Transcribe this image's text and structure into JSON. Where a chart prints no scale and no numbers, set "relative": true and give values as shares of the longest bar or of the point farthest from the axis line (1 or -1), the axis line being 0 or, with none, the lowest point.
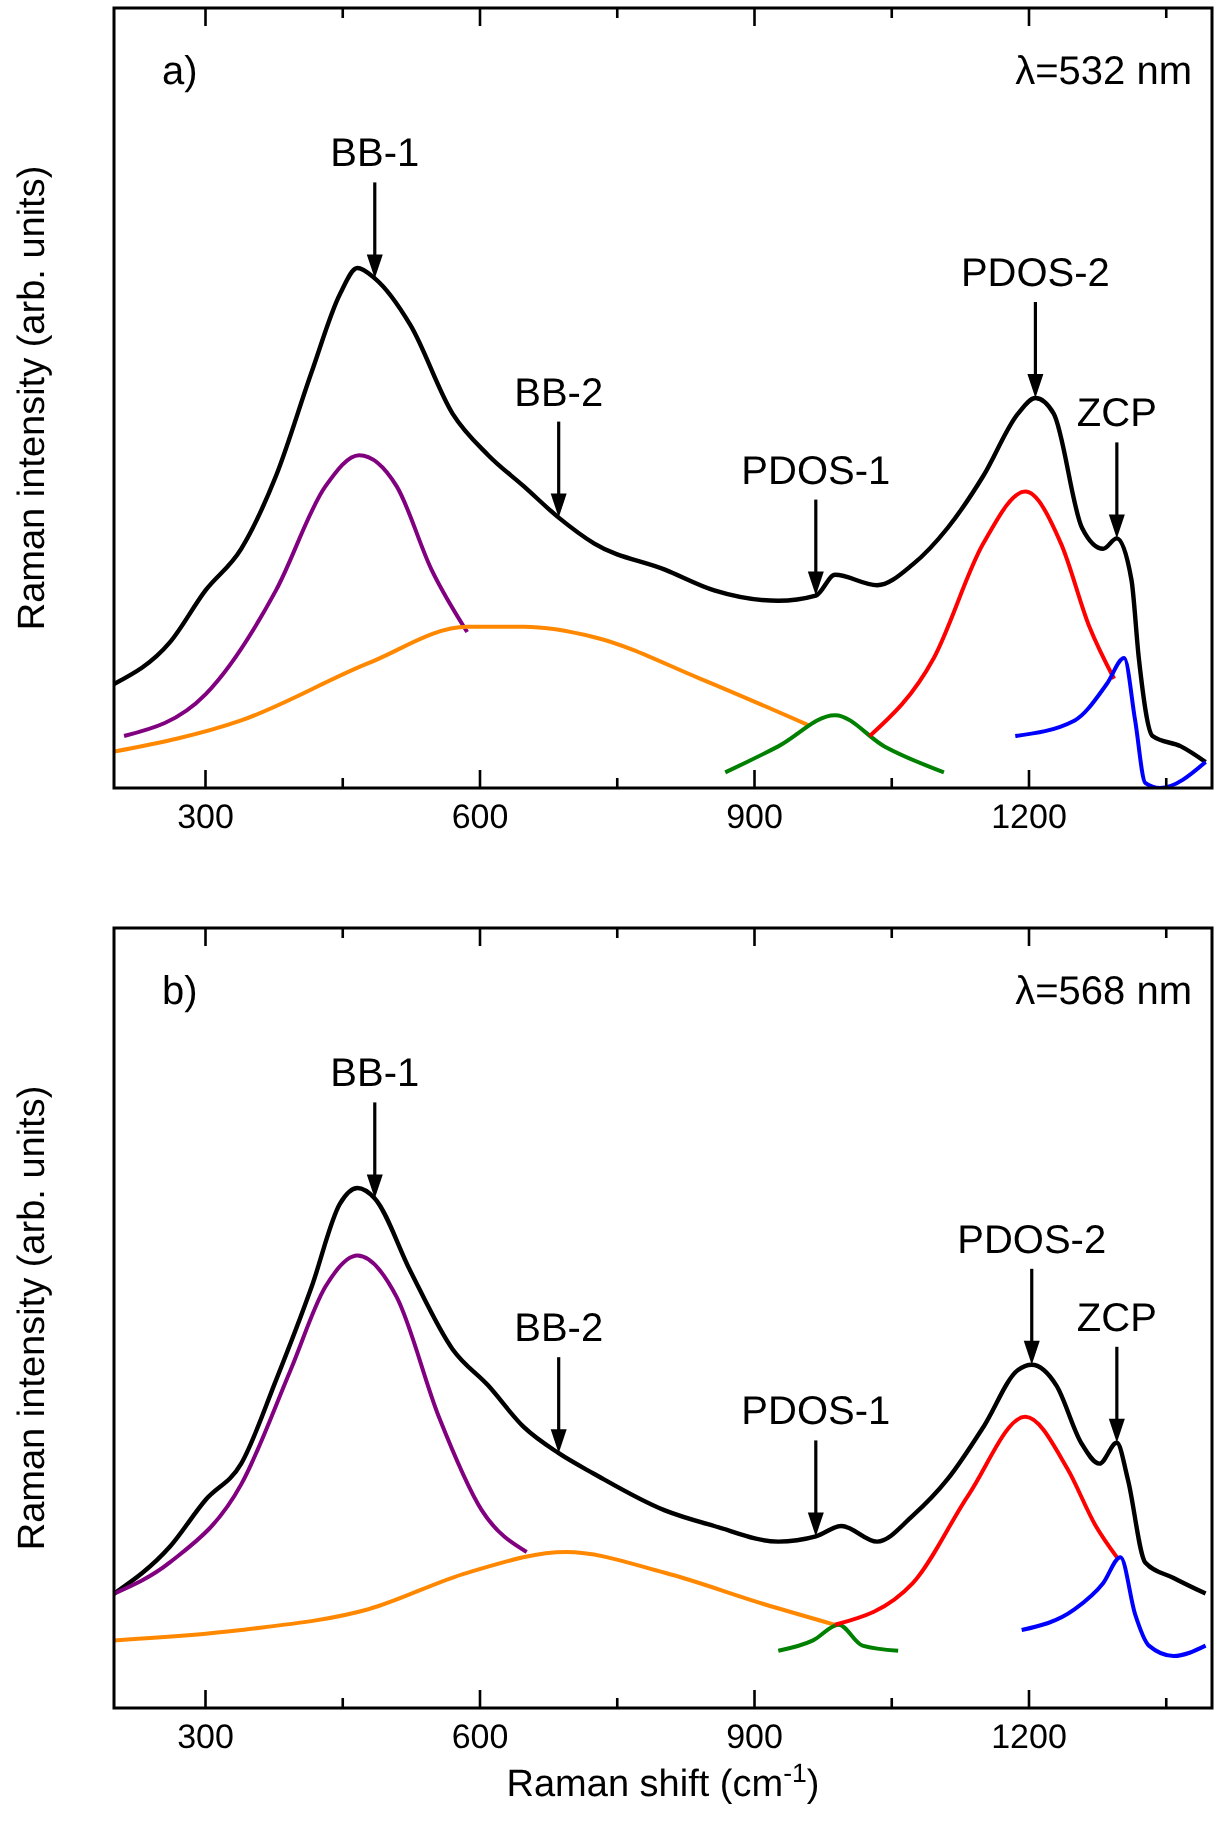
{
  "chart_data": [
    {
      "type": "line",
      "relative": true,
      "tick_labels": "x",
      "ylabel": "Raman intensity (arb. units)",
      "xlim": [
        200,
        1400
      ],
      "xticks": [
        300,
        {
          "value": 450,
          "label": null
        },
        600,
        {
          "value": 750,
          "label": null
        },
        900,
        {
          "value": 1050,
          "label": null
        },
        1200,
        {
          "value": 1350,
          "label": null
        }
      ],
      "annotations": [
        "a)",
        "λ=532 nm",
        {
          "text": "BB-1",
          "x": 485,
          "y": 0.98
        },
        {
          "text": "BB-2",
          "x": 686,
          "y": 0.52
        },
        {
          "text": "PDOS-1",
          "x": 967,
          "y": 0.37
        },
        {
          "text": "PDOS-2",
          "x": 1207,
          "y": 0.75
        },
        {
          "text": "ZCP",
          "x": 1296,
          "y": 0.48
        }
      ],
      "series": [
        {
          "color": "#000000",
          "x": [
            200,
            261,
            300,
            339,
            377,
            416,
            447,
            466,
            485,
            524,
            570,
            609,
            648,
            686,
            725,
            802,
            856,
            926,
            967,
            988,
            1034,
            1073,
            1111,
            1150,
            1188,
            1207,
            1227,
            1258,
            1281,
            1296,
            1312,
            1320,
            1335,
            1366,
            1393
          ],
          "values": [
            0.2,
            0.28,
            0.38,
            0.46,
            0.6,
            0.8,
            0.95,
            1,
            0.98,
            0.89,
            0.72,
            0.64,
            0.58,
            0.52,
            0.47,
            0.42,
            0.38,
            0.36,
            0.37,
            0.41,
            0.39,
            0.43,
            0.5,
            0.6,
            0.72,
            0.75,
            0.72,
            0.5,
            0.46,
            0.48,
            0.4,
            0.25,
            0.1,
            0.08,
            0.05
          ]
        },
        {
          "color": "#800080",
          "x": [
            211,
            300,
            377,
            431,
            468,
            509,
            547,
            586
          ],
          "values": [
            0.1,
            0.18,
            0.38,
            0.58,
            0.64,
            0.58,
            0.42,
            0.3
          ]
        },
        {
          "color": "#ff8800",
          "x": [
            200,
            339,
            478,
            586,
            648,
            725,
            841,
            960
          ],
          "values": [
            0.07,
            0.13,
            0.24,
            0.31,
            0.31,
            0.29,
            0.21,
            0.12
          ]
        },
        {
          "color": "#008000",
          "x": [
            868,
            926,
            988,
            1042,
            1107
          ],
          "values": [
            0.03,
            0.08,
            0.14,
            0.08,
            0.03
          ]
        },
        {
          "color": "#ff0000",
          "x": [
            1026,
            1096,
            1150,
            1196,
            1235,
            1266,
            1293
          ],
          "values": [
            0.1,
            0.25,
            0.47,
            0.57,
            0.47,
            0.31,
            0.21
          ]
        },
        {
          "color": "#0000ff",
          "x": [
            1185,
            1250,
            1285,
            1304,
            1316,
            1327,
            1343,
            1393
          ],
          "values": [
            0.1,
            0.13,
            0.2,
            0.25,
            0.13,
            0.01,
            0,
            0.05
          ]
        }
      ]
    },
    {
      "type": "line",
      "relative": true,
      "tick_labels": "x",
      "xlabel": "Raman shift (cm$^{-1}$)",
      "ylabel": "Raman intensity (arb. units)",
      "xlim": [
        200,
        1400
      ],
      "xticks": [
        300,
        {
          "value": 450,
          "label": null
        },
        600,
        {
          "value": 750,
          "label": null
        },
        900,
        {
          "value": 1050,
          "label": null
        },
        1200,
        {
          "value": 1350,
          "label": null
        }
      ],
      "annotations": [
        "b)",
        "λ=568 nm",
        {
          "text": "BB-1",
          "x": 485,
          "y": 0.98
        },
        {
          "text": "BB-2",
          "x": 686,
          "y": 0.49
        },
        {
          "text": "PDOS-1",
          "x": 967,
          "y": 0.33
        },
        {
          "text": "PDOS-2",
          "x": 1203,
          "y": 0.66
        },
        {
          "text": "ZCP",
          "x": 1296,
          "y": 0.51
        }
      ],
      "series": [
        {
          "color": "#000000",
          "x": [
            200,
            261,
            300,
            339,
            377,
            416,
            447,
            466,
            485,
            524,
            570,
            609,
            648,
            686,
            725,
            802,
            856,
            926,
            967,
            995,
            1034,
            1073,
            1111,
            1150,
            1188,
            1203,
            1230,
            1257,
            1277,
            1296,
            1308,
            1327,
            1358,
            1393
          ],
          "values": [
            0.22,
            0.31,
            0.4,
            0.47,
            0.63,
            0.81,
            0.97,
            1,
            0.98,
            0.84,
            0.69,
            0.62,
            0.54,
            0.49,
            0.45,
            0.38,
            0.35,
            0.32,
            0.33,
            0.35,
            0.32,
            0.37,
            0.44,
            0.54,
            0.65,
            0.66,
            0.62,
            0.51,
            0.47,
            0.51,
            0.44,
            0.28,
            0.25,
            0.22
          ]
        },
        {
          "color": "#800080",
          "x": [
            200,
            261,
            339,
            393,
            431,
            466,
            509,
            555,
            602,
            651
          ],
          "values": [
            0.22,
            0.28,
            0.43,
            0.65,
            0.81,
            0.87,
            0.79,
            0.56,
            0.38,
            0.3
          ]
        },
        {
          "color": "#ff8800",
          "x": [
            200,
            339,
            478,
            586,
            694,
            802,
            910,
            988
          ],
          "values": [
            0.13,
            0.15,
            0.19,
            0.26,
            0.3,
            0.26,
            0.2,
            0.16
          ]
        },
        {
          "color": "#008000",
          "x": [
            926,
            964,
            992,
            1018,
            1057
          ],
          "values": [
            0.11,
            0.13,
            0.16,
            0.12,
            0.11
          ]
        },
        {
          "color": "#ff0000",
          "x": [
            988,
            1073,
            1134,
            1196,
            1242,
            1273,
            1296
          ],
          "values": [
            0.16,
            0.24,
            0.41,
            0.56,
            0.46,
            0.35,
            0.29
          ]
        },
        {
          "color": "#0000ff",
          "x": [
            1192,
            1250,
            1281,
            1300,
            1316,
            1331,
            1358,
            1393
          ],
          "values": [
            0.15,
            0.19,
            0.24,
            0.29,
            0.18,
            0.12,
            0.1,
            0.12
          ]
        }
      ]
    }
  ]
}
